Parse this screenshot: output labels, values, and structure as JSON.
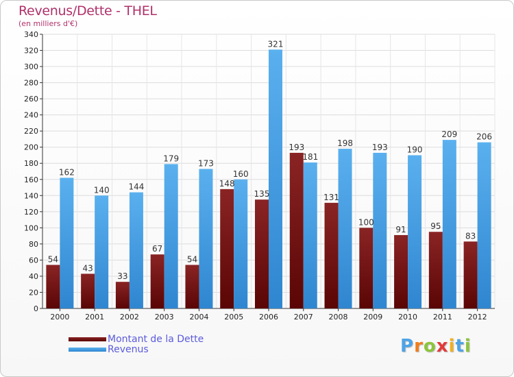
{
  "header": {
    "title": "Revenus/Dette - THEL",
    "subtitle": "(en milliers d'€)"
  },
  "colors": {
    "dette": "#7a1212",
    "revenus": "#4da3e6",
    "title": "#b0306a",
    "legend_text": "#5b5bdc"
  },
  "chart_data": {
    "type": "bar",
    "title": "Revenus/Dette - THEL",
    "subtitle": "(en milliers d'€)",
    "categories": [
      "2000",
      "2001",
      "2002",
      "2003",
      "2004",
      "2005",
      "2006",
      "2007",
      "2008",
      "2009",
      "2010",
      "2011",
      "2012"
    ],
    "series": [
      {
        "name": "Montant de la Dette",
        "values": [
          54,
          43,
          33,
          67,
          54,
          148,
          135,
          193,
          131,
          100,
          91,
          95,
          83
        ]
      },
      {
        "name": "Revenus",
        "values": [
          162,
          140,
          144,
          179,
          173,
          160,
          321,
          181,
          198,
          193,
          190,
          209,
          206
        ]
      }
    ],
    "ylim": [
      0,
      340
    ],
    "yticks": [
      0,
      20,
      40,
      60,
      80,
      100,
      120,
      140,
      160,
      180,
      200,
      220,
      240,
      260,
      280,
      300,
      320,
      340
    ],
    "grid": true,
    "legend_position": "bottom-left"
  },
  "legend": {
    "items": [
      {
        "label": "Montant de la Dette",
        "color": "#7a1212"
      },
      {
        "label": "Revenus",
        "color": "#4da3e6"
      }
    ]
  },
  "logo": {
    "text": "Proxiti",
    "letter_colors": [
      "#4da3e6",
      "#f07d1a",
      "#8cc43c",
      "#e23a3a",
      "#f2b01e",
      "#4da3e6",
      "#8cc43c"
    ]
  }
}
